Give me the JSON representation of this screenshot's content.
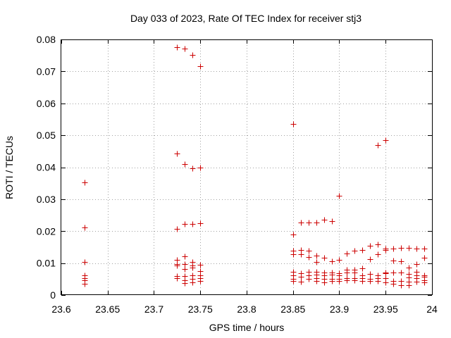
{
  "chart_data": {
    "type": "scatter",
    "title": "Day 033 of 2023, Rate Of TEC Index for receiver stj3",
    "xlabel": "GPS time / hours",
    "ylabel": "ROTI / TECUs",
    "xlim": [
      23.6,
      24.0
    ],
    "ylim": [
      0,
      0.08
    ],
    "xticks": [
      23.6,
      23.65,
      23.7,
      23.75,
      23.8,
      23.85,
      23.9,
      23.95,
      24.0
    ],
    "xtick_labels": [
      "23.6",
      "23.65",
      "23.7",
      "23.75",
      "23.8",
      "23.85",
      "23.9",
      "23.95",
      "24"
    ],
    "yticks": [
      0,
      0.01,
      0.02,
      0.03,
      0.04,
      0.05,
      0.06,
      0.07,
      0.08
    ],
    "ytick_labels": [
      "0",
      "0.01",
      "0.02",
      "0.03",
      "0.04",
      "0.05",
      "0.06",
      "0.07",
      "0.08"
    ],
    "grid": true,
    "marker": "+",
    "color": "#cc0000",
    "series": [
      {
        "name": "ROTI",
        "points": [
          [
            23.625,
            0.0352
          ],
          [
            23.625,
            0.0212
          ],
          [
            23.625,
            0.0103
          ],
          [
            23.625,
            0.0062
          ],
          [
            23.625,
            0.0052
          ],
          [
            23.625,
            0.0047
          ],
          [
            23.625,
            0.0035
          ],
          [
            23.725,
            0.0776
          ],
          [
            23.7333,
            0.0771
          ],
          [
            23.7417,
            0.0751
          ],
          [
            23.75,
            0.0717
          ],
          [
            23.725,
            0.0443
          ],
          [
            23.7333,
            0.041
          ],
          [
            23.7417,
            0.0396
          ],
          [
            23.75,
            0.0398
          ],
          [
            23.725,
            0.0208
          ],
          [
            23.7333,
            0.0222
          ],
          [
            23.7417,
            0.0222
          ],
          [
            23.75,
            0.0224
          ],
          [
            23.725,
            0.011
          ],
          [
            23.725,
            0.0098
          ],
          [
            23.725,
            0.0092
          ],
          [
            23.725,
            0.006
          ],
          [
            23.725,
            0.0053
          ],
          [
            23.7333,
            0.0122
          ],
          [
            23.7333,
            0.0098
          ],
          [
            23.7333,
            0.0082
          ],
          [
            23.7333,
            0.006
          ],
          [
            23.7333,
            0.0047
          ],
          [
            23.7333,
            0.0037
          ],
          [
            23.7417,
            0.0103
          ],
          [
            23.7417,
            0.0093
          ],
          [
            23.7417,
            0.0086
          ],
          [
            23.7417,
            0.0061
          ],
          [
            23.7417,
            0.005
          ],
          [
            23.7417,
            0.004
          ],
          [
            23.75,
            0.0094
          ],
          [
            23.75,
            0.0076
          ],
          [
            23.75,
            0.0061
          ],
          [
            23.75,
            0.0052
          ],
          [
            23.75,
            0.0044
          ],
          [
            23.85,
            0.0535
          ],
          [
            23.85,
            0.019
          ],
          [
            23.85,
            0.0139
          ],
          [
            23.85,
            0.0128
          ],
          [
            23.85,
            0.0073
          ],
          [
            23.85,
            0.0061
          ],
          [
            23.85,
            0.005
          ],
          [
            23.85,
            0.0045
          ],
          [
            23.8583,
            0.0228
          ],
          [
            23.8583,
            0.014
          ],
          [
            23.8583,
            0.0128
          ],
          [
            23.8583,
            0.0069
          ],
          [
            23.8583,
            0.0057
          ],
          [
            23.8583,
            0.0042
          ],
          [
            23.8667,
            0.0228
          ],
          [
            23.8667,
            0.0139
          ],
          [
            23.8667,
            0.0118
          ],
          [
            23.8667,
            0.0072
          ],
          [
            23.8667,
            0.0062
          ],
          [
            23.8667,
            0.0051
          ],
          [
            23.875,
            0.0227
          ],
          [
            23.875,
            0.0124
          ],
          [
            23.875,
            0.0104
          ],
          [
            23.875,
            0.0073
          ],
          [
            23.875,
            0.0063
          ],
          [
            23.875,
            0.0052
          ],
          [
            23.875,
            0.0045
          ],
          [
            23.8833,
            0.0235
          ],
          [
            23.8833,
            0.0117
          ],
          [
            23.8833,
            0.0071
          ],
          [
            23.8833,
            0.0062
          ],
          [
            23.8833,
            0.005
          ],
          [
            23.8833,
            0.0039
          ],
          [
            23.8917,
            0.0232
          ],
          [
            23.8917,
            0.0105
          ],
          [
            23.8917,
            0.0071
          ],
          [
            23.8917,
            0.0064
          ],
          [
            23.8917,
            0.005
          ],
          [
            23.8917,
            0.0044
          ],
          [
            23.9,
            0.0311
          ],
          [
            23.9,
            0.011
          ],
          [
            23.9,
            0.0068
          ],
          [
            23.9,
            0.0061
          ],
          [
            23.9,
            0.005
          ],
          [
            23.9,
            0.0044
          ],
          [
            23.9083,
            0.0129
          ],
          [
            23.9083,
            0.0079
          ],
          [
            23.9083,
            0.007
          ],
          [
            23.9083,
            0.0052
          ],
          [
            23.9083,
            0.0046
          ],
          [
            23.9167,
            0.0139
          ],
          [
            23.9167,
            0.008
          ],
          [
            23.9167,
            0.007
          ],
          [
            23.9167,
            0.0053
          ],
          [
            23.9167,
            0.0047
          ],
          [
            23.925,
            0.0142
          ],
          [
            23.925,
            0.0083
          ],
          [
            23.925,
            0.0062
          ],
          [
            23.925,
            0.0052
          ],
          [
            23.925,
            0.0043
          ],
          [
            23.9333,
            0.0155
          ],
          [
            23.9333,
            0.0112
          ],
          [
            23.9333,
            0.0066
          ],
          [
            23.9333,
            0.0051
          ],
          [
            23.9333,
            0.0044
          ],
          [
            23.9417,
            0.047
          ],
          [
            23.9417,
            0.0159
          ],
          [
            23.9417,
            0.0128
          ],
          [
            23.9417,
            0.0061
          ],
          [
            23.9417,
            0.0053
          ],
          [
            23.9417,
            0.0045
          ],
          [
            23.95,
            0.0485
          ],
          [
            23.95,
            0.0145
          ],
          [
            23.95,
            0.0142
          ],
          [
            23.95,
            0.007
          ],
          [
            23.95,
            0.0068
          ],
          [
            23.95,
            0.0052
          ],
          [
            23.95,
            0.0039
          ],
          [
            23.9583,
            0.0146
          ],
          [
            23.9583,
            0.0107
          ],
          [
            23.9583,
            0.0071
          ],
          [
            23.9583,
            0.0045
          ],
          [
            23.9583,
            0.0035
          ],
          [
            23.9667,
            0.0147
          ],
          [
            23.9667,
            0.0106
          ],
          [
            23.9667,
            0.007
          ],
          [
            23.9667,
            0.0043
          ],
          [
            23.9667,
            0.0031
          ],
          [
            23.975,
            0.0148
          ],
          [
            23.975,
            0.0086
          ],
          [
            23.975,
            0.0067
          ],
          [
            23.975,
            0.0055
          ],
          [
            23.975,
            0.0042
          ],
          [
            23.975,
            0.003
          ],
          [
            23.9833,
            0.0145
          ],
          [
            23.9833,
            0.0097
          ],
          [
            23.9833,
            0.0072
          ],
          [
            23.9833,
            0.0062
          ],
          [
            23.9833,
            0.0052
          ],
          [
            23.9833,
            0.0041
          ],
          [
            23.9917,
            0.0146
          ],
          [
            23.9917,
            0.0116
          ],
          [
            23.9917,
            0.0061
          ],
          [
            23.9917,
            0.0057
          ],
          [
            23.9917,
            0.0046
          ],
          [
            23.9917,
            0.004
          ]
        ]
      }
    ]
  }
}
